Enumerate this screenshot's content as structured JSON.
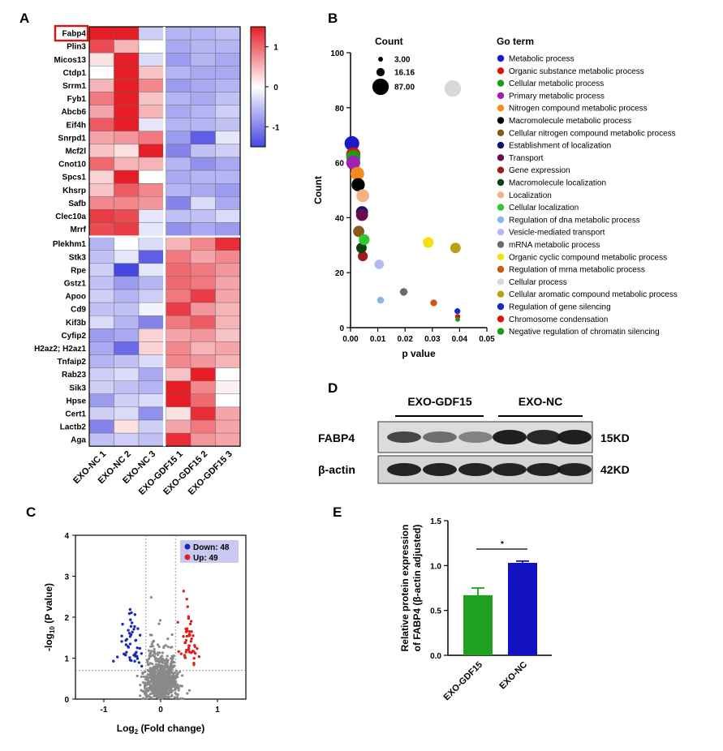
{
  "panels": {
    "A": "A",
    "B": "B",
    "C": "C",
    "D": "D",
    "E": "E"
  },
  "chart_data": [
    {
      "panel": "A",
      "type": "heatmap",
      "highlight_gene": "Fabp4",
      "rows": [
        "Fabp4",
        "Plin3",
        "Micos13",
        "Ctdp1",
        "Srrm1",
        "Fyb1",
        "Abcb6",
        "Eif4h",
        "Snrpd1",
        "Mcf2l",
        "Cnot10",
        "Spcs1",
        "Khsrp",
        "Safb",
        "Clec10a",
        "Mrrf",
        "Plekhm1",
        "Stk3",
        "Rpe",
        "Gstz1",
        "Apoo",
        "Cd9",
        "Kif3b",
        "Cyfip2",
        "H2az2; H2az1",
        "Tnfaip2",
        "Rab23",
        "Sik3",
        "Hpse",
        "Cert1",
        "Lactb2",
        "Aga"
      ],
      "columns": [
        "EXO-NC 1",
        "EXO-NC 2",
        "EXO-NC 3",
        "EXO-GDF15 1",
        "EXO-GDF15 2",
        "EXO-GDF15 3"
      ],
      "values": [
        [
          1.5,
          1.6,
          -0.4,
          -0.6,
          -0.6,
          -0.5
        ],
        [
          1.2,
          0.5,
          0.0,
          -0.7,
          -0.6,
          -0.6
        ],
        [
          0.2,
          1.7,
          -0.3,
          -0.8,
          -0.6,
          -0.7
        ],
        [
          0.0,
          1.5,
          0.4,
          -0.6,
          -0.7,
          -0.7
        ],
        [
          0.5,
          1.8,
          0.8,
          -0.8,
          -0.7,
          -0.6
        ],
        [
          0.9,
          1.5,
          0.4,
          -0.6,
          -0.7,
          -0.5
        ],
        [
          0.6,
          1.5,
          0.5,
          -0.7,
          -0.6,
          -0.4
        ],
        [
          1.1,
          1.7,
          -0.2,
          -0.6,
          -0.6,
          -0.5
        ],
        [
          0.6,
          0.7,
          0.9,
          -0.8,
          -1.3,
          -0.2
        ],
        [
          0.4,
          0.2,
          1.5,
          -1.0,
          -0.5,
          -0.4
        ],
        [
          1.0,
          0.5,
          0.5,
          -0.6,
          -0.9,
          -0.7
        ],
        [
          0.3,
          1.8,
          0.0,
          -0.7,
          -0.6,
          -0.6
        ],
        [
          0.4,
          1.1,
          0.8,
          -0.6,
          -0.7,
          -0.8
        ],
        [
          0.8,
          0.8,
          0.7,
          -1.0,
          -0.3,
          -0.7
        ],
        [
          1.3,
          1.2,
          -0.2,
          -0.5,
          -0.5,
          -0.3
        ],
        [
          1.2,
          1.3,
          -0.2,
          -0.9,
          -0.7,
          -0.8
        ],
        [
          -0.6,
          0.0,
          -0.3,
          0.5,
          0.8,
          1.4
        ],
        [
          -0.5,
          -0.2,
          -1.3,
          0.9,
          0.6,
          0.8
        ],
        [
          -0.4,
          -1.5,
          -0.2,
          1.0,
          0.9,
          0.7
        ],
        [
          -0.5,
          -0.8,
          -0.6,
          1.0,
          0.9,
          0.6
        ],
        [
          -0.4,
          -0.6,
          -0.4,
          0.9,
          1.3,
          0.6
        ],
        [
          -0.5,
          -0.5,
          -0.1,
          1.3,
          0.7,
          0.5
        ],
        [
          -0.3,
          -0.6,
          -1.0,
          0.9,
          1.1,
          0.5
        ],
        [
          -0.8,
          -0.7,
          0.3,
          0.6,
          0.7,
          0.4
        ],
        [
          -0.7,
          -1.2,
          0.3,
          0.8,
          0.5,
          0.6
        ],
        [
          -0.6,
          -0.5,
          -0.3,
          0.8,
          0.7,
          0.5
        ],
        [
          -0.4,
          -0.3,
          -0.7,
          0.4,
          1.5,
          0.0
        ],
        [
          -0.4,
          -0.5,
          -0.6,
          1.7,
          0.8,
          0.1
        ],
        [
          -0.8,
          -0.4,
          -0.3,
          1.6,
          1.0,
          0.0
        ],
        [
          -0.4,
          -0.3,
          -0.9,
          0.2,
          1.4,
          0.6
        ],
        [
          -1.0,
          0.2,
          -0.4,
          0.6,
          0.9,
          0.6
        ],
        [
          -0.5,
          -0.4,
          -0.5,
          1.4,
          0.7,
          0.6
        ]
      ],
      "colorbar": {
        "min": -1.5,
        "max": 1.5,
        "ticks": [
          1,
          0,
          -1
        ],
        "tick_labels": [
          "1",
          "0",
          "-1"
        ]
      }
    },
    {
      "panel": "B",
      "type": "scatter",
      "xlabel": "p value",
      "ylabel": "Count",
      "xlim": [
        0,
        0.05
      ],
      "ylim": [
        0,
        100
      ],
      "xticks": [
        0.0,
        0.01,
        0.02,
        0.03,
        0.04,
        0.05
      ],
      "xtick_labels": [
        "0.00",
        "0.01",
        "0.02",
        "0.03",
        "0.04",
        "0.05"
      ],
      "yticks": [
        0,
        20,
        40,
        60,
        80,
        100
      ],
      "ytick_labels": [
        "0",
        "20",
        "40",
        "60",
        "80",
        "100"
      ],
      "size_legend_title": "Count",
      "size_legend": [
        {
          "label": "3.00",
          "value": 3
        },
        {
          "label": "16.16",
          "value": 16.16
        },
        {
          "label": "87.00",
          "value": 87
        }
      ],
      "color_legend_title": "Go term",
      "series": [
        {
          "name": "Metabolic process",
          "color": "#1a1ac8",
          "x": 0.0005,
          "y": 67
        },
        {
          "name": "Organic substance metabolic process",
          "color": "#e01010",
          "x": 0.001,
          "y": 63
        },
        {
          "name": "Cellular metabolic process",
          "color": "#1a9e1a",
          "x": 0.001,
          "y": 62
        },
        {
          "name": "Primary metabolic process",
          "color": "#a020b0",
          "x": 0.001,
          "y": 60
        },
        {
          "name": "Nitrogen compound metabolic process",
          "color": "#f58a1e",
          "x": 0.0025,
          "y": 56
        },
        {
          "name": "Macromolecule metabolic process",
          "color": "#000000",
          "x": 0.0028,
          "y": 52
        },
        {
          "name": "Cellular nitrogen compound metabolic process",
          "color": "#8b5a1a",
          "x": 0.003,
          "y": 35
        },
        {
          "name": "Establishment of localization",
          "color": "#12126e",
          "x": 0.0042,
          "y": 42
        },
        {
          "name": "Transport",
          "color": "#6a0d4a",
          "x": 0.0042,
          "y": 41
        },
        {
          "name": "Gene expression",
          "color": "#9e1c1c",
          "x": 0.0045,
          "y": 26
        },
        {
          "name": "Macromolecule localization",
          "color": "#104010",
          "x": 0.004,
          "y": 29
        },
        {
          "name": "Localization",
          "color": "#f4b282",
          "x": 0.0045,
          "y": 48
        },
        {
          "name": "Cellular localization",
          "color": "#30c830",
          "x": 0.005,
          "y": 32
        },
        {
          "name": "Regulation of dna metabolic process",
          "color": "#8ab8ea",
          "x": 0.011,
          "y": 10
        },
        {
          "name": "Vesicle-mediated transport",
          "color": "#b8b8f0",
          "x": 0.0105,
          "y": 23
        },
        {
          "name": "mRNA metabolic process",
          "color": "#6a6a6a",
          "x": 0.0195,
          "y": 13
        },
        {
          "name": "Organic cyclic compound metabolic process",
          "color": "#f4e010",
          "x": 0.0285,
          "y": 31
        },
        {
          "name": "Regulation of mrna metabolic process",
          "color": "#c85a10",
          "x": 0.0305,
          "y": 9
        },
        {
          "name": "Cellular process",
          "color": "#d8d8d8",
          "x": 0.0375,
          "y": 87
        },
        {
          "name": "Cellular aromatic compound metabolic process",
          "color": "#b8a010",
          "x": 0.0385,
          "y": 29
        },
        {
          "name": "Regulation of gene silencing",
          "color": "#1a2ac8",
          "x": 0.0392,
          "y": 6
        },
        {
          "name": "Chromosome condensation",
          "color": "#e01010",
          "x": 0.0393,
          "y": 4
        },
        {
          "name": "Negative regulation of chromatin silencing",
          "color": "#1a9e1a",
          "x": 0.0393,
          "y": 3
        }
      ]
    },
    {
      "panel": "C",
      "type": "scatter",
      "xlabel": "Log2 (Fold change)",
      "xlabel_prefix": "Log",
      "xlabel_sub": "2",
      "xlabel_suffix": " (Fold change)",
      "ylabel": "-log10 (P value)",
      "ylabel_prefix": "-log",
      "ylabel_sub": "10",
      "ylabel_suffix": " (P value)",
      "xlim": [
        -1.5,
        1.5
      ],
      "ylim": [
        0,
        4
      ],
      "xticks": [
        -1,
        0,
        1
      ],
      "xtick_labels": [
        "-1",
        "0",
        "1"
      ],
      "yticks": [
        0,
        1,
        2,
        3,
        4
      ],
      "ytick_labels": [
        "0",
        "1",
        "2",
        "3",
        "4"
      ],
      "thresholds": {
        "x": [
          -0.26,
          0.26
        ],
        "y": 0.699
      },
      "legend": [
        {
          "name": "Down: 48",
          "color": "#1a2ab8"
        },
        {
          "name": "Up: 49",
          "color": "#e02020"
        }
      ],
      "down_count": 48,
      "up_count": 49,
      "background_points": 1000
    },
    {
      "panel": "E",
      "type": "bar",
      "categories": [
        "EXO-GDF15",
        "EXO-NC"
      ],
      "values": [
        0.67,
        1.03
      ],
      "errors": [
        0.08,
        0.02
      ],
      "colors": [
        "#1fa01f",
        "#1212c0"
      ],
      "ylabel": "Relative protein expression of FABP4 (β-actin adjusted)",
      "ylabel_line1": "Relative protein expression",
      "ylabel_line2": "of FABP4 (β-actin adjusted)",
      "ylim": [
        0,
        1.5
      ],
      "yticks": [
        0,
        0.5,
        1.0,
        1.5
      ],
      "ytick_labels": [
        "0.0",
        "0.5",
        "1.0",
        "1.5"
      ],
      "significance": "*"
    }
  ],
  "western_blot": {
    "group_left": "EXO-GDF15",
    "group_right": "EXO-NC",
    "row1_label": "FABP4",
    "row1_size": "15KD",
    "row2_label": "β-actin",
    "row2_size": "42KD"
  }
}
